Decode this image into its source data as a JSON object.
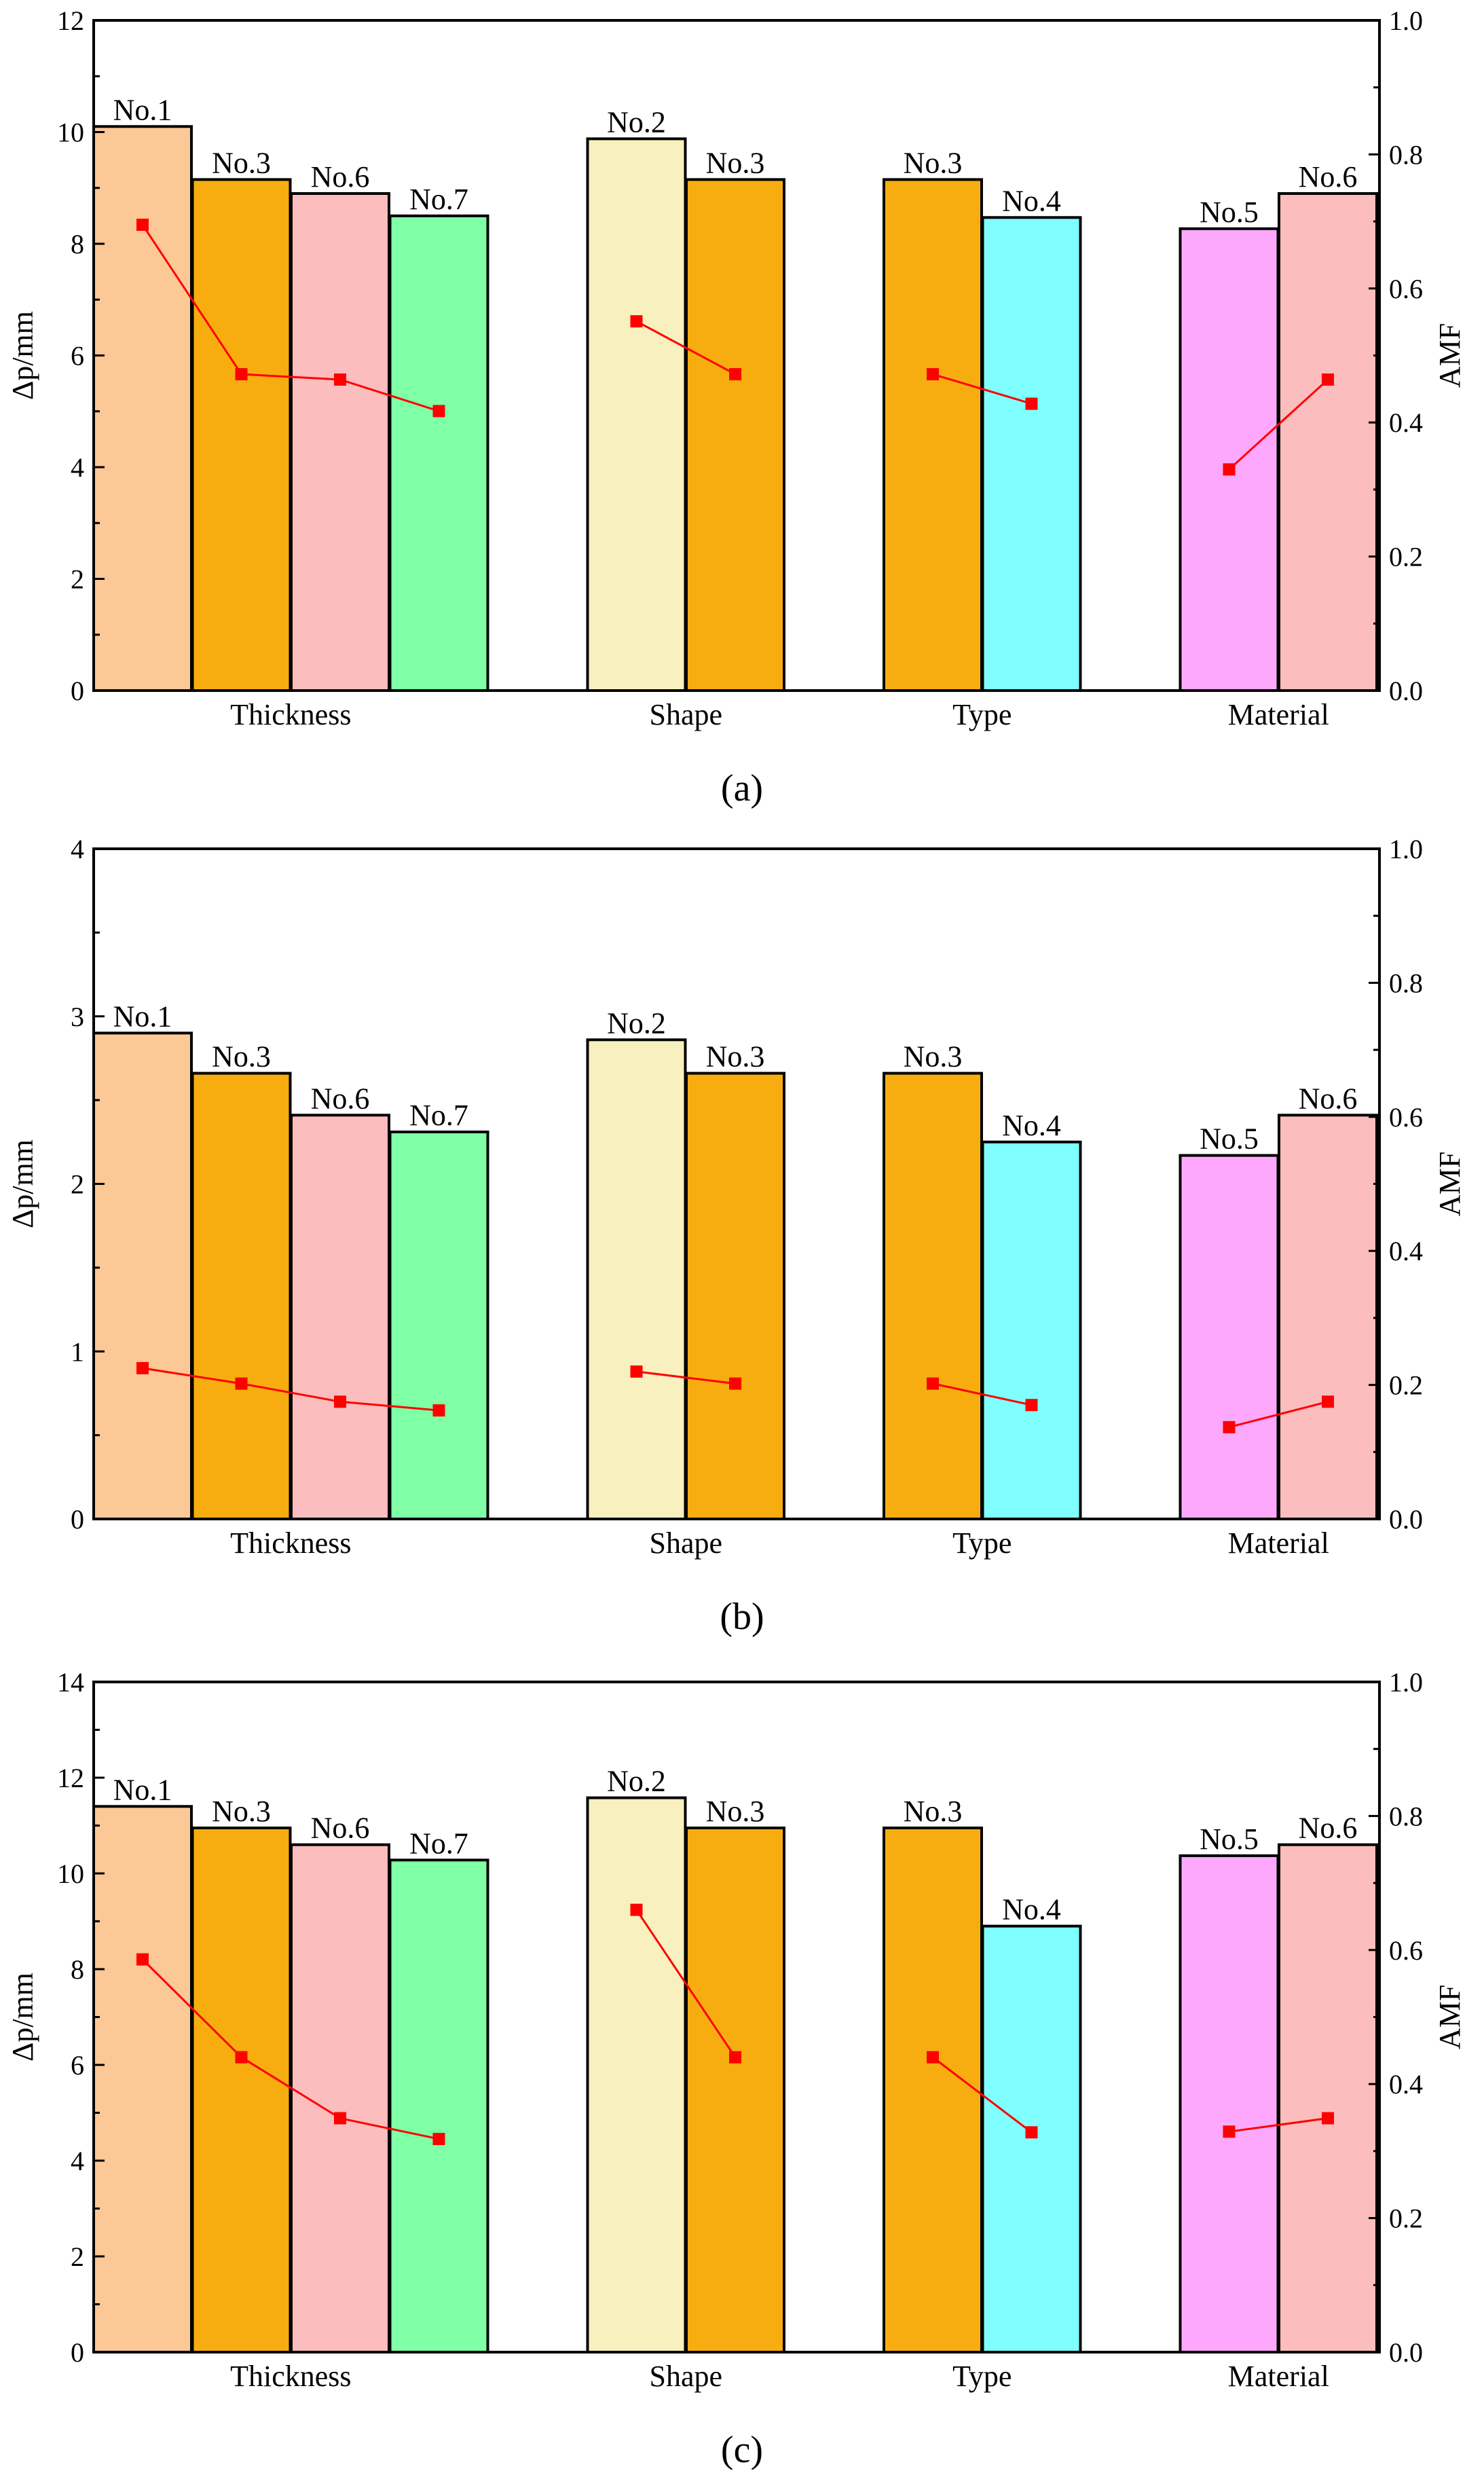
{
  "chart_data": [
    {
      "type": "bar",
      "panel_label": "(a)",
      "ylabel": "Δp/mm",
      "y2label": "AMF",
      "ylim": [
        0,
        12
      ],
      "y2lim": [
        0,
        1.0
      ],
      "yticks": [
        "0",
        "2",
        "4",
        "6",
        "8",
        "10",
        "12"
      ],
      "y2ticks": [
        "0.0",
        "0.2",
        "0.4",
        "0.6",
        "0.8",
        "1.0"
      ],
      "groups": [
        {
          "name": "Thickness",
          "bars": [
            {
              "label": "No.1",
              "value": 10.1,
              "amf": 0.695,
              "color": "#FBC896"
            },
            {
              "label": "No.3",
              "value": 9.15,
              "amf": 0.472,
              "color": "#F7AD10"
            },
            {
              "label": "No.6",
              "value": 8.9,
              "amf": 0.464,
              "color": "#FBBDBD"
            },
            {
              "label": "No.7",
              "value": 8.5,
              "amf": 0.417,
              "color": "#7FFFA6"
            }
          ]
        },
        {
          "name": "Shape",
          "bars": [
            {
              "label": "No.2",
              "value": 9.88,
              "amf": 0.551,
              "color": "#F8F0BE"
            },
            {
              "label": "No.3",
              "value": 9.15,
              "amf": 0.472,
              "color": "#F7AD10"
            }
          ]
        },
        {
          "name": "Type",
          "bars": [
            {
              "label": "No.3",
              "value": 9.15,
              "amf": 0.472,
              "color": "#F7AD10"
            },
            {
              "label": "No.4",
              "value": 8.47,
              "amf": 0.428,
              "color": "#7FFFFF"
            }
          ]
        },
        {
          "name": "Material",
          "bars": [
            {
              "label": "No.5",
              "value": 8.27,
              "amf": 0.33,
              "color": "#FDA8FD"
            },
            {
              "label": "No.6",
              "value": 8.9,
              "amf": 0.464,
              "color": "#FBBDBD"
            }
          ]
        }
      ],
      "line_color": "#FF0000"
    },
    {
      "type": "bar",
      "panel_label": "(b)",
      "ylabel": "Δp/mm",
      "y2label": "AMF",
      "ylim": [
        0,
        4
      ],
      "y2lim": [
        0,
        1.0
      ],
      "yticks": [
        "0",
        "1",
        "2",
        "3",
        "4"
      ],
      "y2ticks": [
        "0.0",
        "0.2",
        "0.4",
        "0.6",
        "0.8",
        "1.0"
      ],
      "groups": [
        {
          "name": "Thickness",
          "bars": [
            {
              "label": "No.1",
              "value": 2.9,
              "amf": 0.225,
              "color": "#FBC896"
            },
            {
              "label": "No.3",
              "value": 2.66,
              "amf": 0.202,
              "color": "#F7AD10"
            },
            {
              "label": "No.6",
              "value": 2.41,
              "amf": 0.175,
              "color": "#FBBDBD"
            },
            {
              "label": "No.7",
              "value": 2.31,
              "amf": 0.162,
              "color": "#7FFFA6"
            }
          ]
        },
        {
          "name": "Shape",
          "bars": [
            {
              "label": "No.2",
              "value": 2.86,
              "amf": 0.22,
              "color": "#F8F0BE"
            },
            {
              "label": "No.3",
              "value": 2.66,
              "amf": 0.202,
              "color": "#F7AD10"
            }
          ]
        },
        {
          "name": "Type",
          "bars": [
            {
              "label": "No.3",
              "value": 2.66,
              "amf": 0.202,
              "color": "#F7AD10"
            },
            {
              "label": "No.4",
              "value": 2.25,
              "amf": 0.17,
              "color": "#7FFFFF"
            }
          ]
        },
        {
          "name": "Material",
          "bars": [
            {
              "label": "No.5",
              "value": 2.17,
              "amf": 0.137,
              "color": "#FDA8FD"
            },
            {
              "label": "No.6",
              "value": 2.41,
              "amf": 0.175,
              "color": "#FBBDBD"
            }
          ]
        }
      ],
      "line_color": "#FF0000"
    },
    {
      "type": "bar",
      "panel_label": "(c)",
      "ylabel": "Δp/mm",
      "y2label": "AMF",
      "ylim": [
        0,
        14
      ],
      "y2lim": [
        0,
        1.0
      ],
      "yticks": [
        "0",
        "2",
        "4",
        "6",
        "8",
        "10",
        "12",
        "14"
      ],
      "y2ticks": [
        "0.0",
        "0.2",
        "0.4",
        "0.6",
        "0.8",
        "1.0"
      ],
      "groups": [
        {
          "name": "Thickness",
          "bars": [
            {
              "label": "No.1",
              "value": 11.4,
              "amf": 0.586,
              "color": "#FBC896"
            },
            {
              "label": "No.3",
              "value": 10.95,
              "amf": 0.44,
              "color": "#F7AD10"
            },
            {
              "label": "No.6",
              "value": 10.6,
              "amf": 0.349,
              "color": "#FBBDBD"
            },
            {
              "label": "No.7",
              "value": 10.28,
              "amf": 0.318,
              "color": "#7FFFA6"
            }
          ]
        },
        {
          "name": "Shape",
          "bars": [
            {
              "label": "No.2",
              "value": 11.58,
              "amf": 0.66,
              "color": "#F8F0BE"
            },
            {
              "label": "No.3",
              "value": 10.95,
              "amf": 0.44,
              "color": "#F7AD10"
            }
          ]
        },
        {
          "name": "Type",
          "bars": [
            {
              "label": "No.3",
              "value": 10.95,
              "amf": 0.44,
              "color": "#F7AD10"
            },
            {
              "label": "No.4",
              "value": 8.9,
              "amf": 0.328,
              "color": "#7FFFFF"
            }
          ]
        },
        {
          "name": "Material",
          "bars": [
            {
              "label": "No.5",
              "value": 10.37,
              "amf": 0.329,
              "color": "#FDA8FD"
            },
            {
              "label": "No.6",
              "value": 10.6,
              "amf": 0.349,
              "color": "#FBBDBD"
            }
          ]
        }
      ],
      "line_color": "#FF0000"
    }
  ]
}
